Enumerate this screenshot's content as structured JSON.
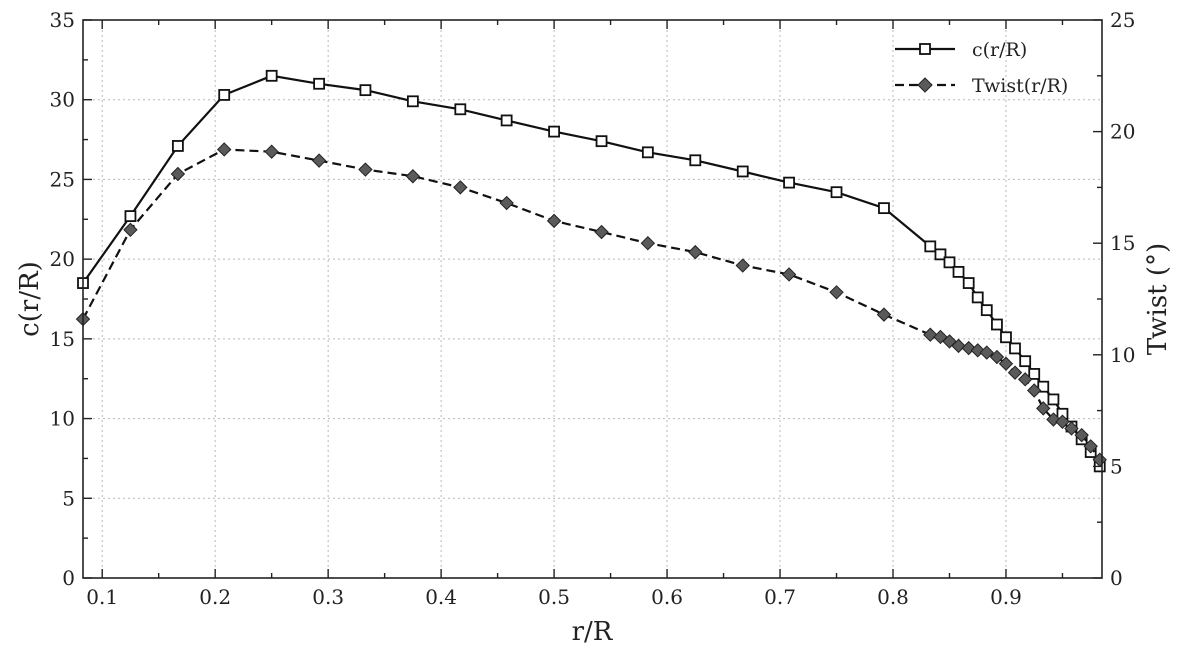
{
  "chart_data": {
    "type": "line",
    "xlabel": "r/R",
    "ylabel": "c(r/R)",
    "y2label": "Twist (°)",
    "xlim": [
      0.083,
      0.985
    ],
    "ylim": [
      0,
      35
    ],
    "y2lim": [
      0,
      25
    ],
    "x_ticks": [
      0.1,
      0.2,
      0.3,
      0.4,
      0.5,
      0.6,
      0.7,
      0.8,
      0.9
    ],
    "y_ticks": [
      0,
      5,
      10,
      15,
      20,
      25,
      30,
      35
    ],
    "y2_ticks": [
      0,
      5,
      10,
      15,
      20,
      25
    ],
    "grid": true,
    "legend_position": "top-right",
    "series": [
      {
        "name": "c(r/R)",
        "axis": "left",
        "line_style": "solid",
        "marker": "open-square",
        "x": [
          0.083,
          0.125,
          0.167,
          0.208,
          0.25,
          0.292,
          0.333,
          0.375,
          0.417,
          0.458,
          0.5,
          0.542,
          0.583,
          0.625,
          0.667,
          0.708,
          0.75,
          0.792,
          0.833,
          0.842,
          0.85,
          0.858,
          0.867,
          0.875,
          0.883,
          0.892,
          0.9,
          0.908,
          0.917,
          0.925,
          0.933,
          0.942,
          0.95,
          0.958,
          0.967,
          0.975,
          0.983
        ],
        "values": [
          18.5,
          22.7,
          27.1,
          30.3,
          31.5,
          31.0,
          30.6,
          29.9,
          29.4,
          28.7,
          28.0,
          27.4,
          26.7,
          26.2,
          25.5,
          24.8,
          24.2,
          23.2,
          20.8,
          20.3,
          19.8,
          19.2,
          18.5,
          17.6,
          16.8,
          15.9,
          15.1,
          14.4,
          13.6,
          12.8,
          12.0,
          11.2,
          10.3,
          9.5,
          8.7,
          7.9,
          7.0
        ]
      },
      {
        "name": "Twist(r/R)",
        "axis": "right",
        "line_style": "dashed",
        "marker": "filled-diamond",
        "x": [
          0.083,
          0.125,
          0.167,
          0.208,
          0.25,
          0.292,
          0.333,
          0.375,
          0.417,
          0.458,
          0.5,
          0.542,
          0.583,
          0.625,
          0.667,
          0.708,
          0.75,
          0.792,
          0.833,
          0.842,
          0.85,
          0.858,
          0.867,
          0.875,
          0.883,
          0.892,
          0.9,
          0.908,
          0.917,
          0.925,
          0.933,
          0.942,
          0.95,
          0.958,
          0.967,
          0.975,
          0.983
        ],
        "values": [
          11.6,
          15.6,
          18.1,
          19.2,
          19.1,
          18.7,
          18.3,
          18.0,
          17.5,
          16.8,
          16.0,
          15.5,
          15.0,
          14.6,
          14.0,
          13.6,
          12.8,
          11.8,
          10.9,
          10.8,
          10.6,
          10.4,
          10.3,
          10.2,
          10.1,
          9.9,
          9.6,
          9.2,
          8.9,
          8.4,
          7.6,
          7.1,
          7.0,
          6.7,
          6.4,
          5.9,
          5.3
        ]
      }
    ]
  }
}
